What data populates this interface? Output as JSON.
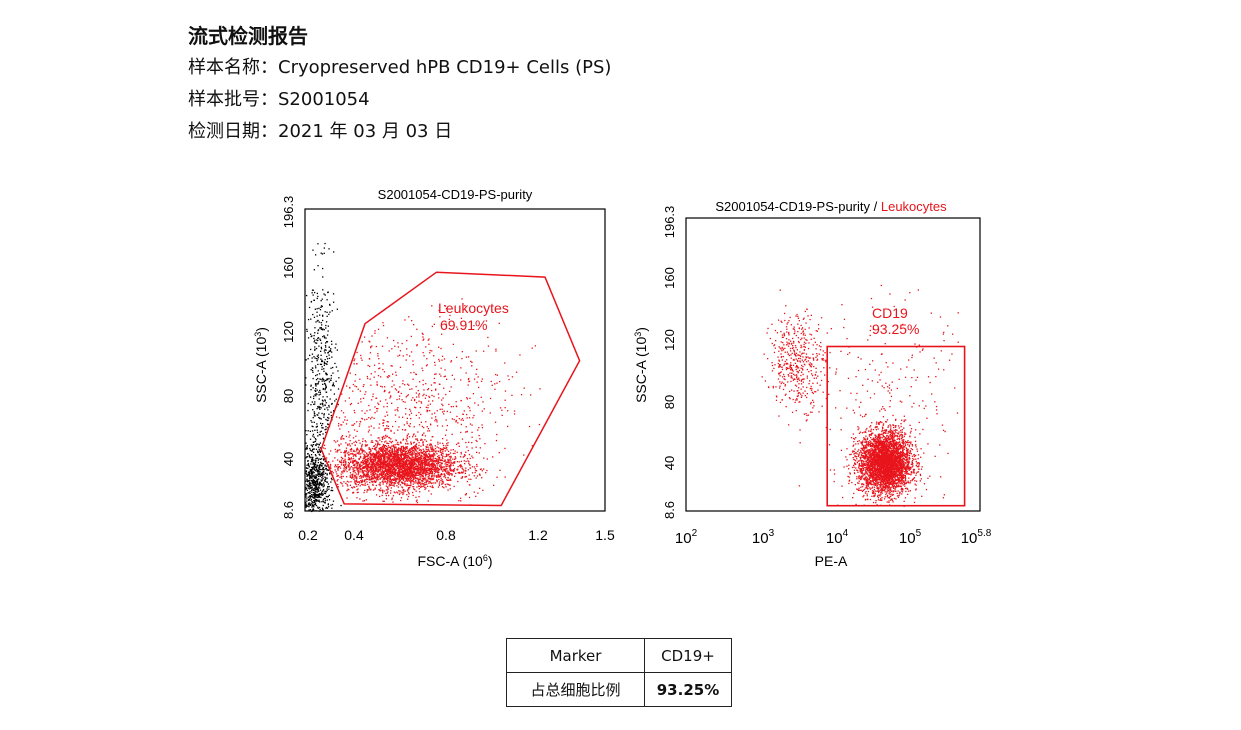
{
  "report": {
    "title": "流式检测报告",
    "sample_name_label": "样本名称：",
    "sample_name": "Cryopreserved hPB CD19+ Cells (PS)",
    "batch_label": "样本批号：",
    "batch": "S2001054",
    "date_label": "检测日期：",
    "date": "2021 年 03 月 03 日"
  },
  "chart_data": [
    {
      "type": "scatter",
      "title": "S2001054-CD19-PS-purity",
      "xlabel": "FSC-A (10^6)",
      "ylabel": "SSC-A (10^3)",
      "xlim": [
        0.2,
        1.5
      ],
      "ylim": [
        8.6,
        196.3
      ],
      "x_ticks": [
        "0.2",
        "0.4",
        "0.8",
        "1.2",
        "1.5"
      ],
      "y_ticks": [
        "8.6",
        "40",
        "80",
        "120",
        "160",
        "196.3"
      ],
      "colors": {
        "gated": "#e8141c",
        "ungated": "#000000"
      },
      "gate": {
        "name": "Leukocytes",
        "percent": "69.91%",
        "shape": "polygon",
        "vertices": [
          [
            0.27,
            47
          ],
          [
            0.46,
            125
          ],
          [
            0.77,
            157
          ],
          [
            1.24,
            154
          ],
          [
            1.39,
            102
          ],
          [
            1.05,
            12
          ],
          [
            0.37,
            13
          ]
        ]
      },
      "populations": [
        {
          "color": "gated",
          "n": 3200,
          "center": [
            0.6,
            37
          ],
          "spread": [
            0.13,
            7
          ],
          "in_gate": true
        },
        {
          "color": "gated",
          "n": 900,
          "center": [
            0.65,
            70
          ],
          "spread": [
            0.22,
            30
          ],
          "in_gate": true
        },
        {
          "color": "ungated",
          "n": 700,
          "center": [
            0.24,
            25
          ],
          "spread": [
            0.035,
            12
          ]
        },
        {
          "color": "ungated",
          "n": 500,
          "center": [
            0.27,
            85
          ],
          "spread": [
            0.035,
            35
          ]
        }
      ]
    },
    {
      "type": "scatter",
      "title": "S2001054-CD19-PS-purity / ",
      "title_highlight": "Leukocytes",
      "xlabel": "PE-A",
      "ylabel": "SSC-A (10^3)",
      "x_scale": "log",
      "xlim_log10": [
        2,
        5.8
      ],
      "ylim": [
        8.6,
        196.3
      ],
      "x_ticks_exponent": [
        "2",
        "3",
        "4",
        "5",
        "5.8"
      ],
      "y_ticks": [
        "8.6",
        "40",
        "80",
        "120",
        "160",
        "196.3"
      ],
      "colors": {
        "gated": "#e8141c"
      },
      "gate": {
        "name": "CD19",
        "percent": "93.25%",
        "shape": "rectangle",
        "x_log10": [
          3.85,
          5.65
        ],
        "y": [
          12,
          114
        ]
      },
      "populations": [
        {
          "color": "gated",
          "n": 3500,
          "center_log10": [
            4.6,
            40
          ],
          "spread": [
            0.17,
            10
          ]
        },
        {
          "color": "gated",
          "n": 450,
          "center_log10": [
            3.45,
            105
          ],
          "spread": [
            0.18,
            15
          ]
        },
        {
          "color": "gated",
          "n": 250,
          "center_log10": [
            4.6,
            75
          ],
          "spread": [
            0.6,
            35
          ]
        }
      ]
    }
  ],
  "table": {
    "headers": [
      "Marker",
      "CD19+"
    ],
    "rows": [
      [
        "占总细胞比例",
        "93.25%"
      ]
    ]
  }
}
